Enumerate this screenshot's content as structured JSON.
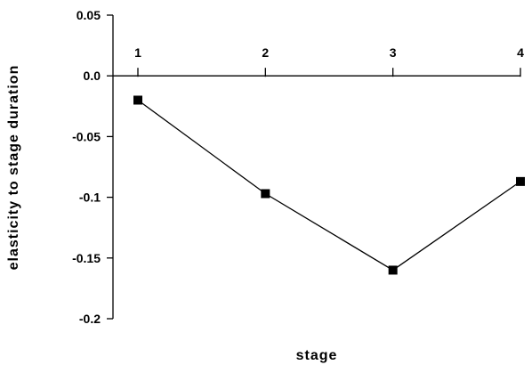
{
  "chart_data": {
    "type": "line",
    "title": "",
    "xlabel": "stage",
    "ylabel": "elasticity to stage duration",
    "x": [
      1,
      2,
      3,
      4
    ],
    "x_tick_labels": [
      "1",
      "2",
      "3",
      "4"
    ],
    "series": [
      {
        "values": [
          -0.02,
          -0.097,
          -0.16,
          -0.087
        ]
      }
    ],
    "y_ticks": [
      0.05,
      0.0,
      -0.05,
      -0.1,
      -0.15,
      -0.2
    ],
    "y_tick_labels": [
      "0.05",
      "0.0",
      "-0.05",
      "-0.1",
      "-0.15",
      "-0.2"
    ],
    "ylim": [
      -0.2,
      0.05
    ],
    "xlim": [
      1,
      4
    ],
    "grid": false,
    "marker": "square",
    "line_color": "#000000",
    "marker_color": "#000000"
  }
}
